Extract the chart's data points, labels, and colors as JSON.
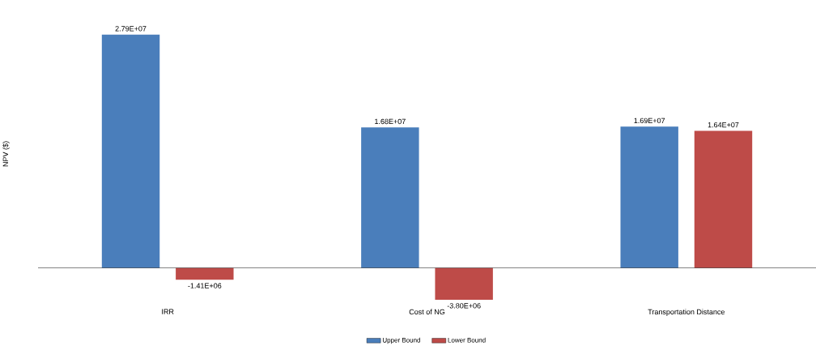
{
  "chart_data": {
    "type": "bar",
    "ylabel": "NPV ($)",
    "categories": [
      "IRR",
      "Cost of NG",
      "Transportation Distance"
    ],
    "series": [
      {
        "name": "Upper Bound",
        "color": "#4a7ebb",
        "values": [
          27900000,
          16800000,
          16900000
        ],
        "value_labels": [
          "2.79E+07",
          "1.68E+07",
          "1.69E+07"
        ]
      },
      {
        "name": "Lower Bound",
        "color": "#be4b48",
        "values": [
          -1410000,
          -3800000,
          16400000
        ],
        "value_labels": [
          "-1.41E+06",
          "-3.80E+06",
          "1.64E+07"
        ]
      }
    ],
    "legend": "bottom"
  }
}
